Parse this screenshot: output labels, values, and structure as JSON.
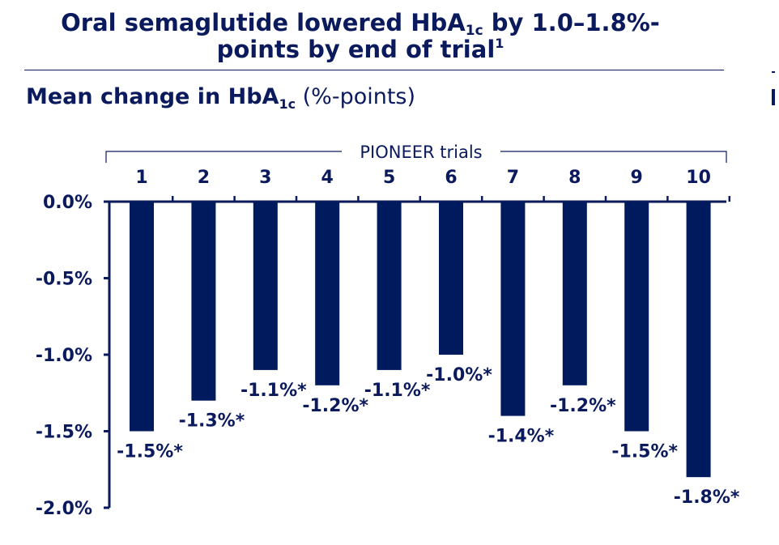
{
  "title": {
    "line1_main": "Oral semaglutide lowered HbA",
    "line1_sub": "1c",
    "line1_rest": " by 1.0–1.8%-",
    "line2_main": "points by end of trial",
    "line2_sup": "1"
  },
  "subtitle": {
    "bold_main": "Mean change in HbA",
    "bold_sub": "1c",
    "rest": " (%-points)"
  },
  "colors": {
    "bar": "#001a5e",
    "text": "#0a1a5c",
    "axis": "#0a1a5c"
  },
  "chart_data": {
    "type": "bar",
    "group_label": "PIONEER trials",
    "categories": [
      "1",
      "2",
      "3",
      "4",
      "5",
      "6",
      "7",
      "8",
      "9",
      "10"
    ],
    "values": [
      -1.5,
      -1.3,
      -1.1,
      -1.2,
      -1.1,
      -1.0,
      -1.4,
      -1.2,
      -1.5,
      -1.8
    ],
    "value_labels": [
      "-1.5%*",
      "-1.3%*",
      "-1.1%*",
      "-1.2%*",
      "-1.1%*",
      "-1.0%*",
      "-1.4%*",
      "-1.2%*",
      "-1.5%*",
      "-1.8%*"
    ],
    "ylim": [
      -2.0,
      0.0
    ],
    "yticks": [
      0.0,
      -0.5,
      -1.0,
      -1.5,
      -2.0
    ],
    "ytick_labels": [
      "0.0%",
      "-0.5%",
      "-1.0%",
      "-1.5%",
      "-2.0%"
    ],
    "xaxis_position": "top",
    "grid": false,
    "legend": "none"
  }
}
